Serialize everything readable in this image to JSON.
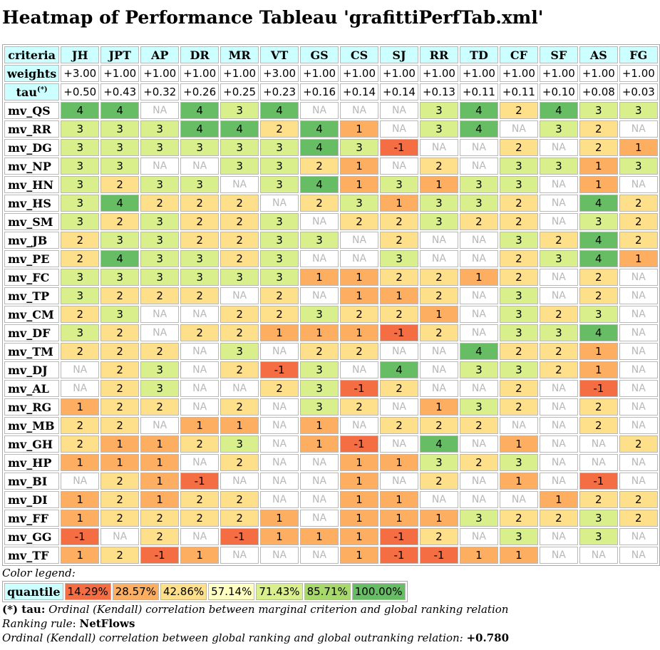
{
  "title": "Heatmap of Performance Tableau 'grafittiPerfTab.xml'",
  "table": {
    "criteria_label": "criteria",
    "weights_label": "weights",
    "tau_label": "tau",
    "tau_sup": "(*)",
    "criteria": [
      "JH",
      "JPT",
      "AP",
      "DR",
      "MR",
      "VT",
      "GS",
      "CS",
      "SJ",
      "RR",
      "TD",
      "CF",
      "SF",
      "AS",
      "FG"
    ],
    "weights": [
      "+3.00",
      "+1.00",
      "+1.00",
      "+1.00",
      "+1.00",
      "+3.00",
      "+1.00",
      "+1.00",
      "+1.00",
      "+1.00",
      "+1.00",
      "+1.00",
      "+1.00",
      "+1.00",
      "+1.00"
    ],
    "tau": [
      "+0.50",
      "+0.43",
      "+0.32",
      "+0.26",
      "+0.25",
      "+0.23",
      "+0.16",
      "+0.14",
      "+0.14",
      "+0.13",
      "+0.11",
      "+0.11",
      "+0.10",
      "+0.08",
      "+0.03"
    ],
    "rows": [
      {
        "name": "mv_QS",
        "values": [
          "4",
          "4",
          "NA",
          "4",
          "3",
          "4",
          "NA",
          "NA",
          "NA",
          "3",
          "4",
          "2",
          "4",
          "3",
          "3"
        ]
      },
      {
        "name": "mv_RR",
        "values": [
          "3",
          "3",
          "3",
          "4",
          "4",
          "2",
          "4",
          "1",
          "NA",
          "3",
          "4",
          "NA",
          "3",
          "2",
          "NA"
        ]
      },
      {
        "name": "mv_DG",
        "values": [
          "3",
          "3",
          "3",
          "3",
          "3",
          "3",
          "4",
          "3",
          "-1",
          "NA",
          "NA",
          "2",
          "NA",
          "2",
          "1"
        ]
      },
      {
        "name": "mv_NP",
        "values": [
          "3",
          "3",
          "NA",
          "NA",
          "3",
          "3",
          "2",
          "1",
          "NA",
          "2",
          "NA",
          "3",
          "3",
          "1",
          "3"
        ]
      },
      {
        "name": "mv_HN",
        "values": [
          "3",
          "2",
          "3",
          "3",
          "NA",
          "3",
          "4",
          "1",
          "3",
          "1",
          "3",
          "3",
          "NA",
          "1",
          "NA"
        ]
      },
      {
        "name": "mv_HS",
        "values": [
          "3",
          "4",
          "2",
          "2",
          "2",
          "NA",
          "2",
          "3",
          "1",
          "3",
          "3",
          "2",
          "NA",
          "4",
          "2"
        ]
      },
      {
        "name": "mv_SM",
        "values": [
          "3",
          "2",
          "3",
          "2",
          "2",
          "3",
          "NA",
          "2",
          "2",
          "3",
          "2",
          "2",
          "NA",
          "3",
          "2"
        ]
      },
      {
        "name": "mv_JB",
        "values": [
          "2",
          "3",
          "3",
          "2",
          "2",
          "3",
          "3",
          "NA",
          "2",
          "NA",
          "NA",
          "3",
          "2",
          "4",
          "2"
        ]
      },
      {
        "name": "mv_PE",
        "values": [
          "2",
          "4",
          "3",
          "3",
          "2",
          "3",
          "NA",
          "NA",
          "3",
          "NA",
          "NA",
          "2",
          "3",
          "4",
          "1"
        ]
      },
      {
        "name": "mv_FC",
        "values": [
          "3",
          "3",
          "3",
          "3",
          "3",
          "3",
          "1",
          "1",
          "2",
          "2",
          "1",
          "2",
          "NA",
          "2",
          "NA"
        ]
      },
      {
        "name": "mv_TP",
        "values": [
          "3",
          "2",
          "2",
          "2",
          "NA",
          "2",
          "NA",
          "1",
          "1",
          "2",
          "NA",
          "3",
          "NA",
          "2",
          "NA"
        ]
      },
      {
        "name": "mv_CM",
        "values": [
          "2",
          "3",
          "NA",
          "NA",
          "2",
          "2",
          "3",
          "2",
          "2",
          "1",
          "NA",
          "3",
          "2",
          "3",
          "NA"
        ]
      },
      {
        "name": "mv_DF",
        "values": [
          "3",
          "2",
          "NA",
          "2",
          "2",
          "1",
          "1",
          "1",
          "-1",
          "2",
          "NA",
          "3",
          "3",
          "4",
          "NA"
        ]
      },
      {
        "name": "mv_TM",
        "values": [
          "2",
          "2",
          "2",
          "NA",
          "3",
          "NA",
          "2",
          "2",
          "NA",
          "NA",
          "4",
          "2",
          "2",
          "1",
          "NA"
        ]
      },
      {
        "name": "mv_DJ",
        "values": [
          "NA",
          "2",
          "3",
          "NA",
          "2",
          "-1",
          "3",
          "NA",
          "4",
          "NA",
          "3",
          "3",
          "2",
          "1",
          "NA"
        ]
      },
      {
        "name": "mv_AL",
        "values": [
          "NA",
          "2",
          "3",
          "NA",
          "NA",
          "2",
          "3",
          "-1",
          "2",
          "NA",
          "NA",
          "2",
          "NA",
          "-1",
          "NA"
        ]
      },
      {
        "name": "mv_RG",
        "values": [
          "1",
          "2",
          "2",
          "NA",
          "2",
          "NA",
          "3",
          "2",
          "NA",
          "1",
          "3",
          "2",
          "NA",
          "2",
          "NA"
        ]
      },
      {
        "name": "mv_MB",
        "values": [
          "2",
          "2",
          "NA",
          "1",
          "1",
          "NA",
          "1",
          "NA",
          "2",
          "2",
          "2",
          "NA",
          "NA",
          "2",
          "NA"
        ]
      },
      {
        "name": "mv_GH",
        "values": [
          "2",
          "1",
          "1",
          "2",
          "3",
          "NA",
          "1",
          "-1",
          "NA",
          "4",
          "NA",
          "1",
          "NA",
          "NA",
          "2"
        ]
      },
      {
        "name": "mv_HP",
        "values": [
          "1",
          "1",
          "1",
          "NA",
          "2",
          "NA",
          "NA",
          "1",
          "1",
          "3",
          "2",
          "3",
          "NA",
          "NA",
          "NA"
        ]
      },
      {
        "name": "mv_BI",
        "values": [
          "NA",
          "2",
          "1",
          "-1",
          "NA",
          "NA",
          "NA",
          "1",
          "NA",
          "2",
          "NA",
          "1",
          "NA",
          "-1",
          "NA"
        ]
      },
      {
        "name": "mv_DI",
        "values": [
          "1",
          "2",
          "1",
          "2",
          "2",
          "NA",
          "NA",
          "1",
          "1",
          "NA",
          "NA",
          "NA",
          "1",
          "2",
          "2"
        ]
      },
      {
        "name": "mv_FF",
        "values": [
          "1",
          "2",
          "2",
          "2",
          "2",
          "1",
          "NA",
          "1",
          "1",
          "1",
          "3",
          "2",
          "2",
          "3",
          "2"
        ]
      },
      {
        "name": "mv_GG",
        "values": [
          "-1",
          "NA",
          "2",
          "NA",
          "-1",
          "1",
          "1",
          "1",
          "-1",
          "2",
          "NA",
          "3",
          "NA",
          "3",
          "NA"
        ]
      },
      {
        "name": "mv_TF",
        "values": [
          "1",
          "2",
          "-1",
          "1",
          "NA",
          "NA",
          "NA",
          "1",
          "-1",
          "-1",
          "1",
          "1",
          "NA",
          "NA",
          "NA"
        ]
      }
    ]
  },
  "color_scale": {
    "-1": "#f46d43",
    "1": "#fdae61",
    "2": "#fee08b",
    "3": "#d9ef8b",
    "4": "#66bd63"
  },
  "legend": {
    "caption": "Color legend:",
    "label": "quantile",
    "entries": [
      {
        "text": "14.29%",
        "color": "#f46d43"
      },
      {
        "text": "28.57%",
        "color": "#fdae61"
      },
      {
        "text": "42.86%",
        "color": "#fee08b"
      },
      {
        "text": "57.14%",
        "color": "#ffffbf"
      },
      {
        "text": "71.43%",
        "color": "#d9ef8b"
      },
      {
        "text": "85.71%",
        "color": "#a6d96a"
      },
      {
        "text": "100.00%",
        "color": "#66bd63"
      }
    ]
  },
  "notes": {
    "tau_key": "(*) tau:",
    "tau_text": " Ordinal (Kendall) correlation between marginal criterion and global ranking relation",
    "ranking_rule_label": "Ranking rule",
    "ranking_rule_value": "NetFlows",
    "correlation_text": "Ordinal (Kendall) correlation between global ranking and global outranking relation: ",
    "correlation_value": "+0.780"
  }
}
